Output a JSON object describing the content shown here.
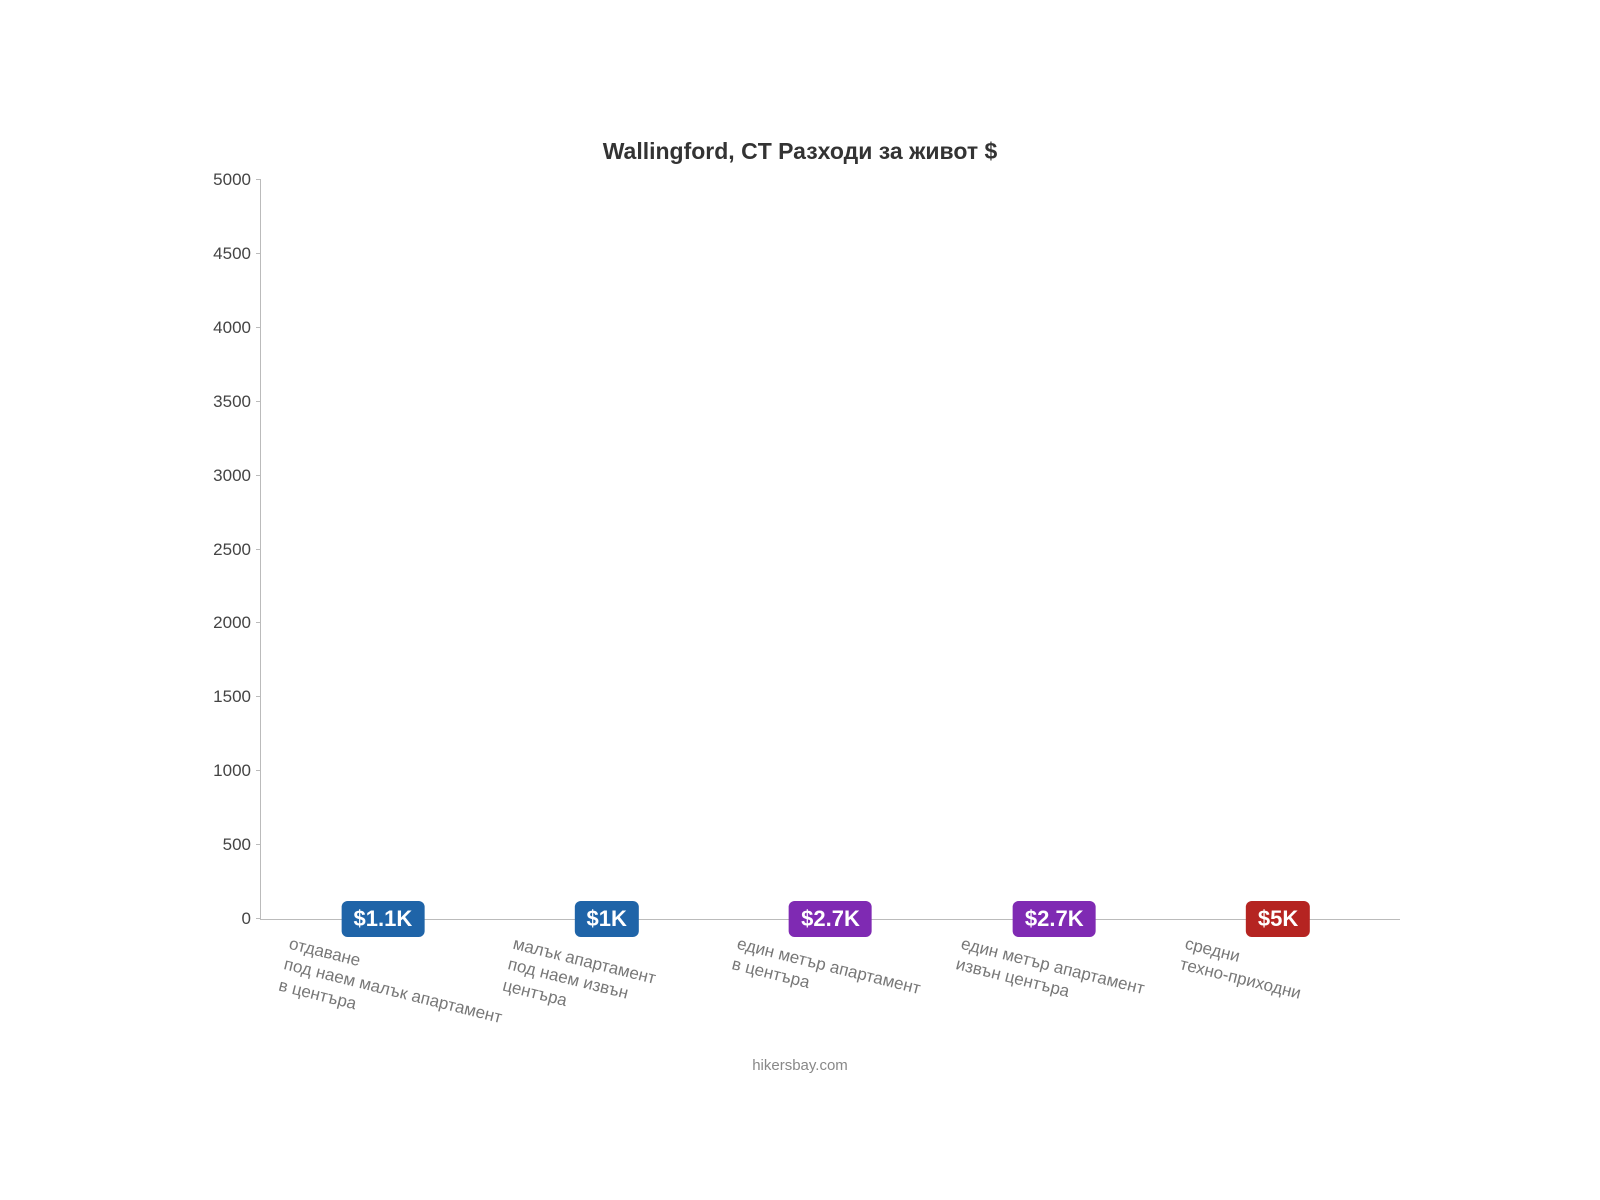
{
  "chart": {
    "type": "bar",
    "title": "Wallingford, CT Разходи за живот $",
    "title_fontsize": 23,
    "title_color": "#333333",
    "background_color": "#ffffff",
    "axis_color": "#bbbbbb",
    "ylabel_color": "#444444",
    "xlabel_color": "#777777",
    "xlabel_fontsize": 17,
    "ylabel_fontsize": 17,
    "ylim_min": 0,
    "ylim_max": 5000,
    "ytick_step": 500,
    "yticks": [
      {
        "v": 0,
        "label": "0"
      },
      {
        "v": 500,
        "label": "500"
      },
      {
        "v": 1000,
        "label": "1000"
      },
      {
        "v": 1500,
        "label": "1500"
      },
      {
        "v": 2000,
        "label": "2000"
      },
      {
        "v": 2500,
        "label": "2500"
      },
      {
        "v": 3000,
        "label": "3000"
      },
      {
        "v": 3500,
        "label": "3500"
      },
      {
        "v": 4000,
        "label": "4000"
      },
      {
        "v": 4500,
        "label": "4500"
      },
      {
        "v": 5000,
        "label": "5000"
      }
    ],
    "bar_width_pct": 80,
    "value_label_fontsize": 22,
    "x_label_rotation_deg": 14,
    "categories": [
      {
        "label": "отдаване\nпод наем малък апартамент\nв центъра",
        "value": 1100,
        "display": "$1.1K",
        "bar_color": "#2f8fdd",
        "badge_bg": "#1f64a8",
        "badge_label_top_pct": 72
      },
      {
        "label": "малък апартамент\nпод наем извън\nцентъра",
        "value": 1000,
        "display": "$1K",
        "bar_color": "#2f8fdd",
        "badge_bg": "#1f64a8",
        "badge_label_top_pct": 72
      },
      {
        "label": "един метър апартамент\nв центъра",
        "value": 2660,
        "display": "$2.7K",
        "bar_color": "#b13be8",
        "badge_bg": "#7f2ab3",
        "badge_label_top_pct": 57
      },
      {
        "label": "един метър апартамент\nизвън центъра",
        "value": 2660,
        "display": "$2.7K",
        "bar_color": "#b13be8",
        "badge_bg": "#7f2ab3",
        "badge_label_top_pct": 57
      },
      {
        "label": "средни\nтехно-приходни",
        "value": 5000,
        "display": "$5K",
        "bar_color": "#e83a36",
        "badge_bg": "#b52421",
        "badge_label_top_pct": 36
      }
    ],
    "credit": "hikersbay.com",
    "credit_color": "#888888",
    "credit_fontsize": 15
  }
}
